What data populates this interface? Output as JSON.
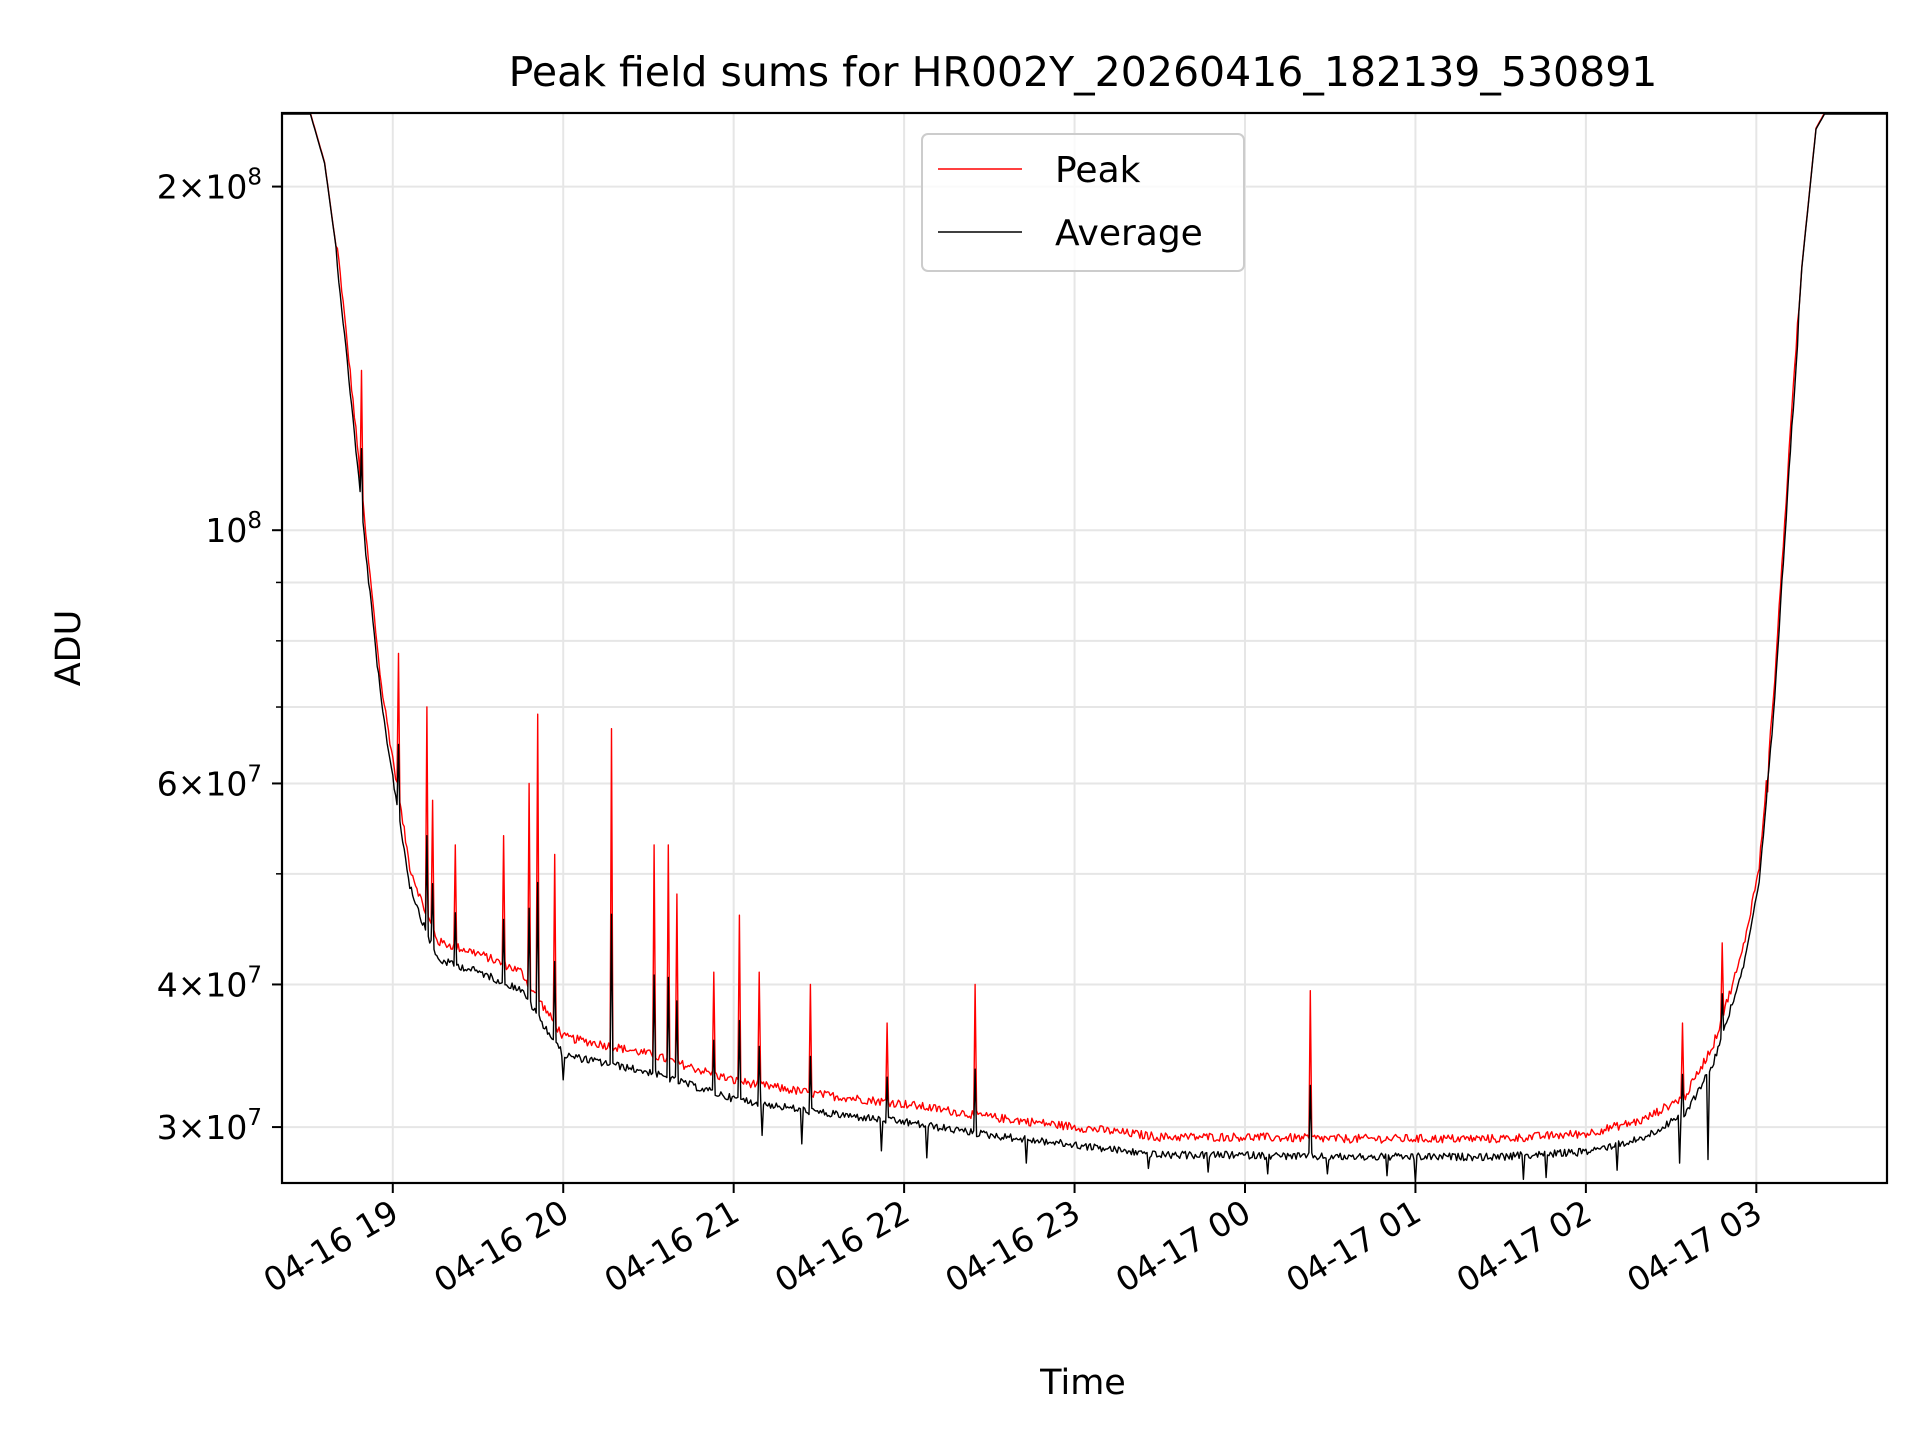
{
  "chart_data": {
    "type": "line",
    "title": "Peak field sums for HR002Y_20260416_182139_530891",
    "xlabel": "Time",
    "ylabel": "ADU",
    "yscale": "log",
    "grid": true,
    "legend_position": "upper center",
    "xlim": [
      "2026-04-16 18:21",
      "2026-04-17 03:46"
    ],
    "ylim": [
      26800000,
      232000000
    ],
    "x_ticks": [
      "04-16 19",
      "04-16 20",
      "04-16 21",
      "04-16 22",
      "04-16 23",
      "04-17 00",
      "04-17 01",
      "04-17 02",
      "04-17 03"
    ],
    "y_tick_labels": [
      {
        "value": 200000000,
        "mantissa": "2",
        "exp": "8"
      },
      {
        "value": 100000000,
        "mantissa": "",
        "exp": "8"
      },
      {
        "value": 60000000,
        "mantissa": "6",
        "exp": "7"
      },
      {
        "value": 40000000,
        "mantissa": "4",
        "exp": "7"
      },
      {
        "value": 30000000,
        "mantissa": "3",
        "exp": "7"
      }
    ],
    "y_minor_ticks": [
      50000000,
      70000000,
      80000000,
      90000000
    ],
    "series": [
      {
        "name": "Peak",
        "color": "#ff0000"
      },
      {
        "name": "Average",
        "color": "#000000"
      }
    ],
    "baseline": [
      [
        "2026-04-16 18:21",
        232000000
      ],
      [
        "2026-04-16 18:31",
        232000000
      ],
      [
        "2026-04-16 18:36",
        210000000
      ],
      [
        "2026-04-16 18:41",
        170000000
      ],
      [
        "2026-04-16 18:46",
        128000000
      ],
      [
        "2026-04-16 18:51",
        95000000
      ],
      [
        "2026-04-16 18:56",
        72000000
      ],
      [
        "2026-04-16 19:01",
        60000000
      ],
      [
        "2026-04-16 19:06",
        50000000
      ],
      [
        "2026-04-16 19:11",
        46000000
      ],
      [
        "2026-04-16 19:16",
        43000000
      ],
      [
        "2026-04-16 19:30",
        42000000
      ],
      [
        "2026-04-16 19:45",
        40500000
      ],
      [
        "2026-04-16 20:00",
        35500000
      ],
      [
        "2026-04-16 20:30",
        34300000
      ],
      [
        "2026-04-16 21:00",
        32500000
      ],
      [
        "2026-04-16 21:30",
        31600000
      ],
      [
        "2026-04-16 22:00",
        31000000
      ],
      [
        "2026-04-16 22:30",
        30200000
      ],
      [
        "2026-04-16 23:00",
        29600000
      ],
      [
        "2026-04-16 23:30",
        29000000
      ],
      [
        "2026-04-17 00:00",
        29000000
      ],
      [
        "2026-04-17 00:30",
        28900000
      ],
      [
        "2026-04-17 01:00",
        28900000
      ],
      [
        "2026-04-17 01:30",
        28900000
      ],
      [
        "2026-04-17 02:00",
        29200000
      ],
      [
        "2026-04-17 02:20",
        30000000
      ],
      [
        "2026-04-17 02:35",
        31500000
      ],
      [
        "2026-04-17 02:45",
        35000000
      ],
      [
        "2026-04-17 02:55",
        42000000
      ],
      [
        "2026-04-17 03:01",
        50000000
      ],
      [
        "2026-04-17 03:06",
        70000000
      ],
      [
        "2026-04-17 03:11",
        110000000
      ],
      [
        "2026-04-17 03:16",
        170000000
      ],
      [
        "2026-04-17 03:21",
        225000000
      ],
      [
        "2026-04-17 03:24",
        232000000
      ],
      [
        "2026-04-17 03:46",
        232000000
      ]
    ],
    "peak_spikes": [
      [
        "2026-04-16 18:49",
        138000000
      ],
      [
        "2026-04-16 19:02",
        78000000
      ],
      [
        "2026-04-16 19:12",
        70000000
      ],
      [
        "2026-04-16 19:14",
        58000000
      ],
      [
        "2026-04-16 19:22",
        53000000
      ],
      [
        "2026-04-16 19:39",
        54000000
      ],
      [
        "2026-04-16 19:48",
        60000000
      ],
      [
        "2026-04-16 19:51",
        69000000
      ],
      [
        "2026-04-16 19:57",
        52000000
      ],
      [
        "2026-04-16 20:17",
        67000000
      ],
      [
        "2026-04-16 20:32",
        53000000
      ],
      [
        "2026-04-16 20:37",
        53000000
      ],
      [
        "2026-04-16 20:40",
        48000000
      ],
      [
        "2026-04-16 20:53",
        41000000
      ],
      [
        "2026-04-16 21:02",
        46000000
      ],
      [
        "2026-04-16 21:09",
        41000000
      ],
      [
        "2026-04-16 21:27",
        40000000
      ],
      [
        "2026-04-16 21:54",
        37000000
      ],
      [
        "2026-04-16 22:25",
        40000000
      ],
      [
        "2026-04-17 00:23",
        39500000
      ],
      [
        "2026-04-17 02:34",
        37000000
      ],
      [
        "2026-04-17 02:48",
        43500000
      ],
      [
        "2026-04-17 03:04",
        59000000
      ]
    ],
    "average_dips": [
      [
        "2026-04-16 20:00",
        33000000
      ],
      [
        "2026-04-16 21:10",
        29500000
      ],
      [
        "2026-04-16 21:24",
        29000000
      ],
      [
        "2026-04-16 21:52",
        28600000
      ],
      [
        "2026-04-16 22:08",
        28200000
      ],
      [
        "2026-04-16 22:43",
        27900000
      ],
      [
        "2026-04-16 23:26",
        27600000
      ],
      [
        "2026-04-16 23:47",
        27400000
      ],
      [
        "2026-04-17 00:08",
        27300000
      ],
      [
        "2026-04-17 00:29",
        27300000
      ],
      [
        "2026-04-17 00:50",
        27200000
      ],
      [
        "2026-04-17 01:00",
        26800000
      ],
      [
        "2026-04-17 01:38",
        27000000
      ],
      [
        "2026-04-17 01:46",
        27100000
      ],
      [
        "2026-04-17 02:11",
        27500000
      ],
      [
        "2026-04-17 02:33",
        27900000
      ],
      [
        "2026-04-17 02:43",
        28100000
      ]
    ]
  }
}
